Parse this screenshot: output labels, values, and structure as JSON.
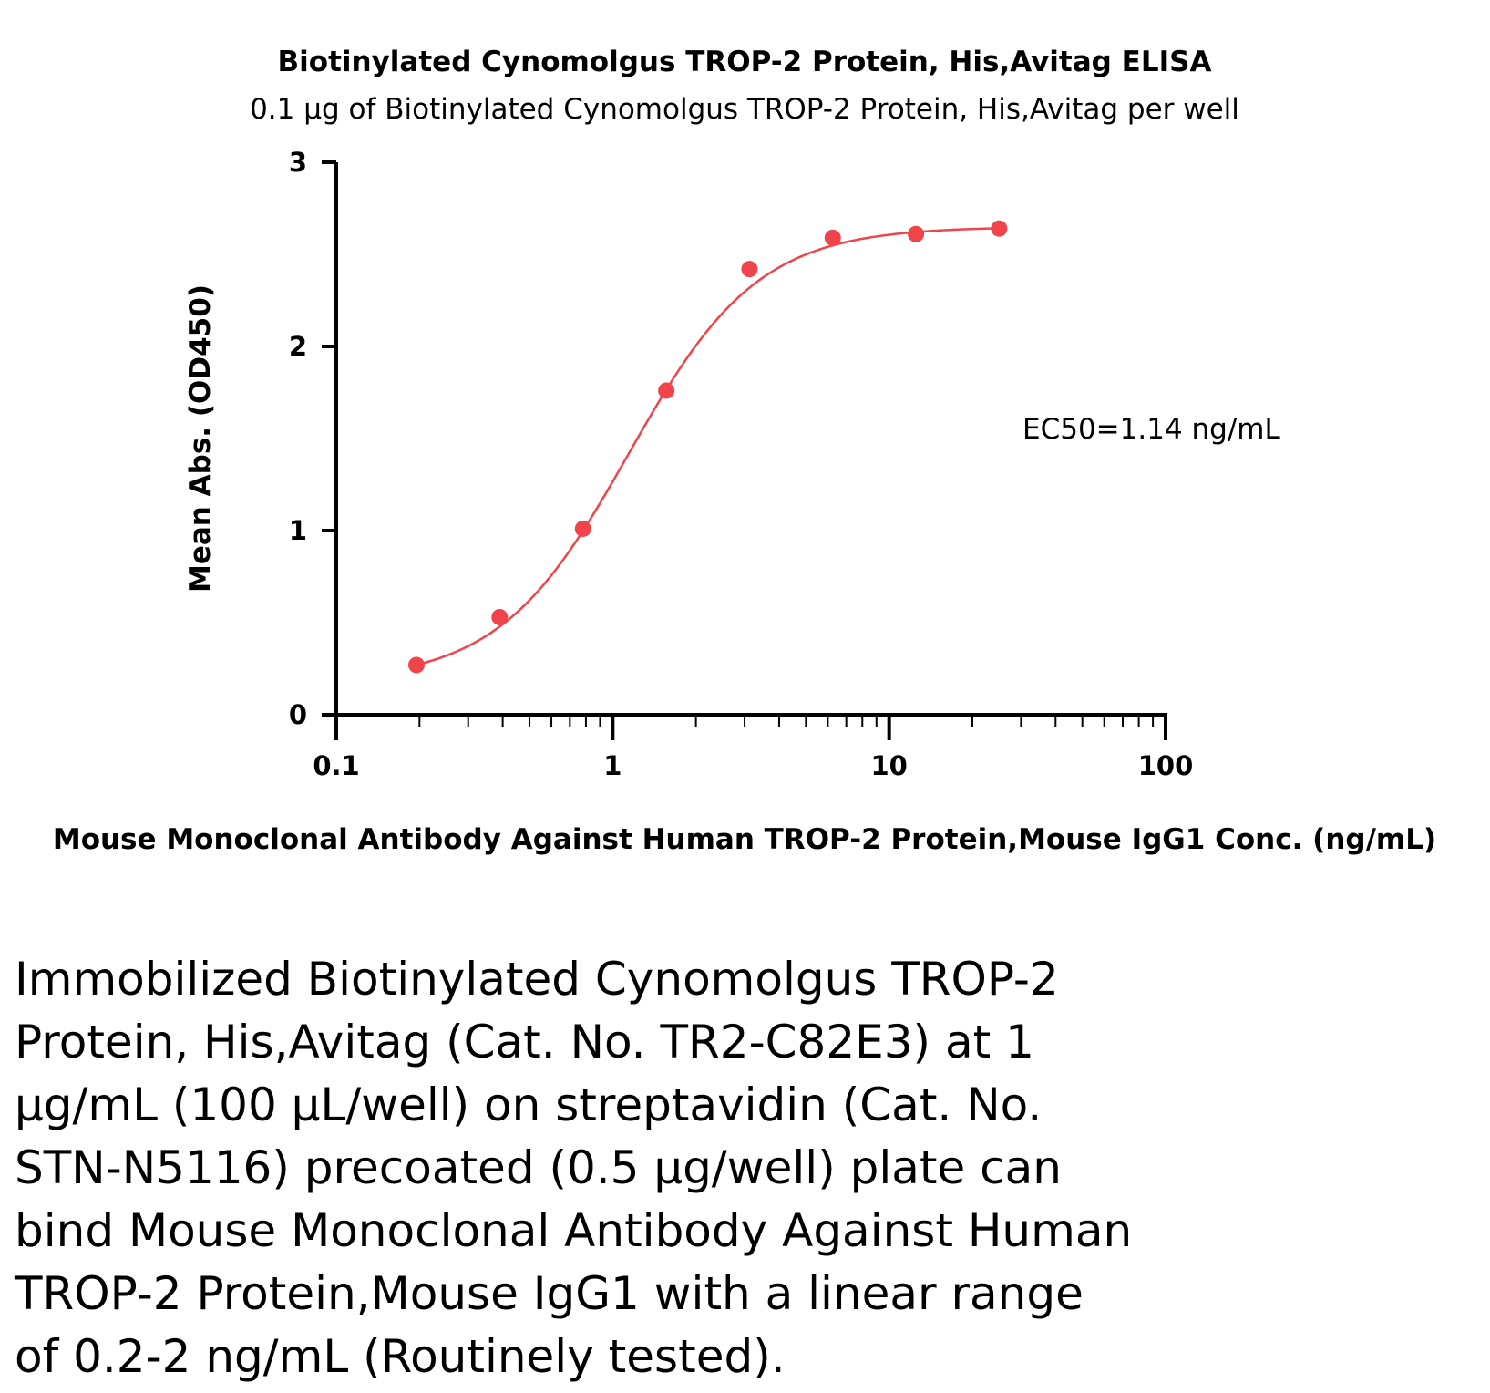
{
  "chart_data": {
    "type": "scatter",
    "title": "Biotinylated Cynomolgus TROP-2 Protein, His,Avitag ELISA",
    "subtitle": "0.1 μg of Biotinylated Cynomolgus TROP-2 Protein, His,Avitag per well",
    "xlabel": "Mouse Monoclonal Antibody Against Human TROP-2 Protein,Mouse IgG1 Conc. (ng/mL)",
    "ylabel": "Mean Abs. (OD450)",
    "xscale": "log",
    "xlim": [
      0.1,
      100
    ],
    "ylim": [
      0,
      3
    ],
    "xticks": [
      "0.1",
      "1",
      "10",
      "100"
    ],
    "yticks": [
      "0",
      "1",
      "2",
      "3"
    ],
    "grid": false,
    "color": "#f0434a",
    "series": [
      {
        "x": [
          0.195,
          0.39,
          0.781,
          1.563,
          3.125,
          6.25,
          12.5,
          25
        ],
        "y": [
          0.27,
          0.53,
          1.01,
          1.76,
          2.42,
          2.59,
          2.61,
          2.64
        ]
      }
    ],
    "fit": {
      "type": "4PL",
      "bottom": 0.18,
      "top": 2.65,
      "ec50": 1.14,
      "hill": 1.85
    },
    "annotations": [
      "EC50=1.14 ng/mL"
    ]
  },
  "caption": "Immobilized Biotinylated Cynomolgus TROP-2\nProtein, His,Avitag (Cat. No. TR2-C82E3) at 1\nμg/mL (100 μL/well) on streptavidin (Cat. No.\nSTN-N5116) precoated (0.5 μg/well) plate can\nbind Mouse Monoclonal Antibody Against Human\nTROP-2 Protein,Mouse IgG1 with a linear range\nof 0.2-2 ng/mL (Routinely tested)."
}
